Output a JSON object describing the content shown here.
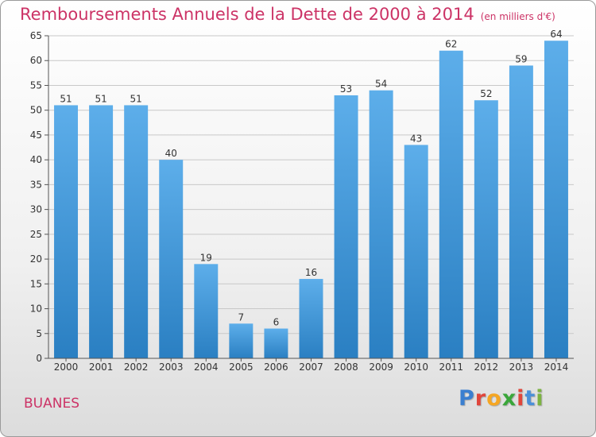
{
  "title": {
    "main": "Remboursements Annuels de la Dette de 2000 à 2014",
    "unit": "(en milliers d'€)"
  },
  "commune": "BUANES",
  "brand": {
    "text": "Proxiti",
    "letter_colors": [
      "#3b7fd0",
      "#e0463c",
      "#f5a623",
      "#3aa63a",
      "#e0463c",
      "#4a90d9",
      "#7cb342"
    ]
  },
  "colors": {
    "title": "#cc3366",
    "bar_light": "#5daeea",
    "bar_dark": "#2a7fc2",
    "grid": "#c8c8c8"
  },
  "chart_data": {
    "type": "bar",
    "categories": [
      "2000",
      "2001",
      "2002",
      "2003",
      "2004",
      "2005",
      "2006",
      "2007",
      "2008",
      "2009",
      "2010",
      "2011",
      "2012",
      "2013",
      "2014"
    ],
    "values": [
      51,
      51,
      51,
      40,
      19,
      7,
      6,
      16,
      53,
      54,
      43,
      62,
      52,
      59,
      64
    ],
    "yticks": [
      0,
      5,
      10,
      15,
      20,
      25,
      30,
      35,
      40,
      45,
      50,
      55,
      60,
      65
    ],
    "ylim": [
      0,
      65
    ],
    "grid": true,
    "data_labels": true
  }
}
